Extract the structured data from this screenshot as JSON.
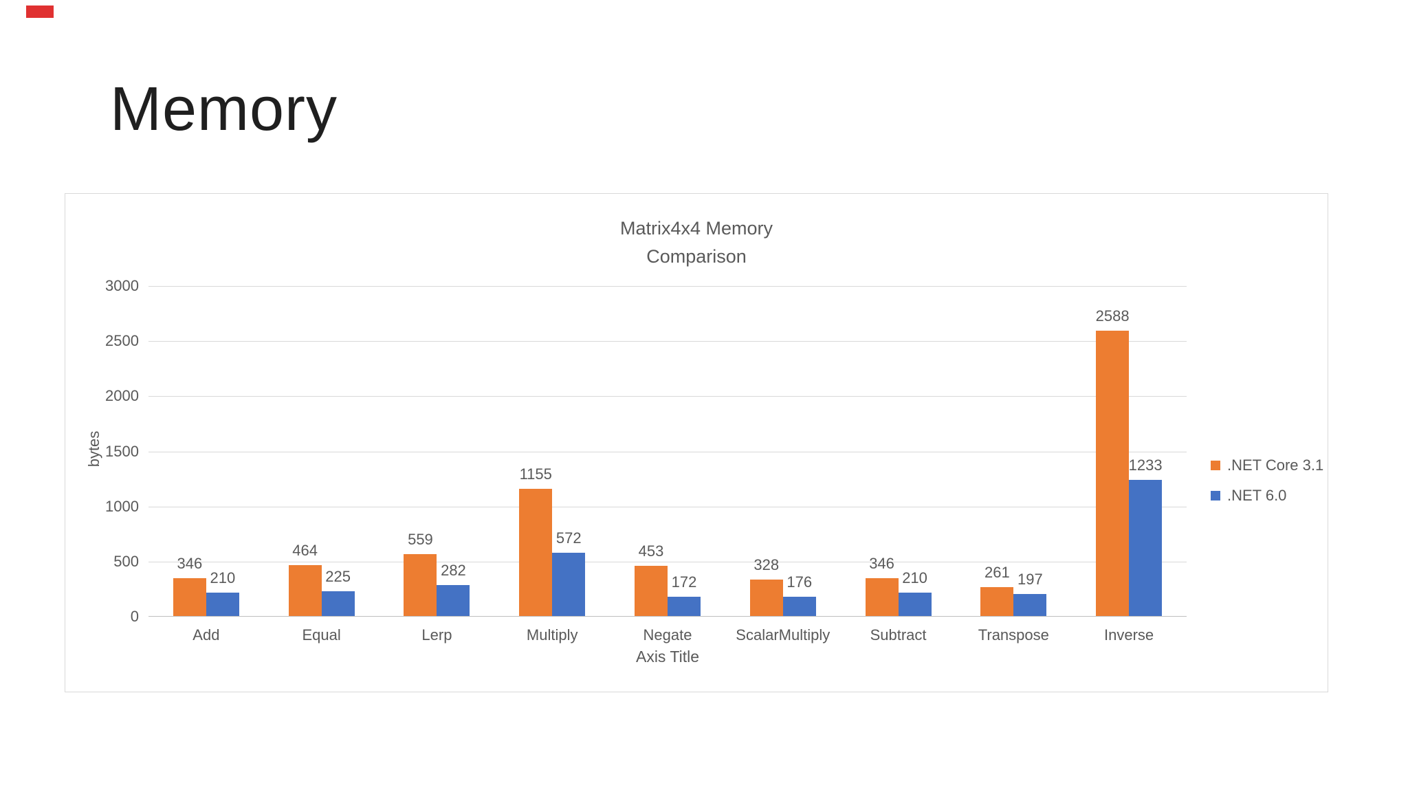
{
  "slide": {
    "title": "Memory"
  },
  "chart_data": {
    "type": "bar",
    "title_lines": [
      "Matrix4x4 Memory",
      "Comparison"
    ],
    "categories": [
      "Add",
      "Equal",
      "Lerp",
      "Multiply",
      "Negate",
      "ScalarMultiply",
      "Subtract",
      "Transpose",
      "Inverse"
    ],
    "series": [
      {
        "name": ".NET Core 3.1",
        "color": "#ED7D31",
        "values": [
          346,
          464,
          559,
          1155,
          453,
          328,
          346,
          261,
          2588
        ]
      },
      {
        "name": ".NET 6.0",
        "color": "#4472C4",
        "values": [
          210,
          225,
          282,
          572,
          172,
          176,
          210,
          197,
          1233
        ]
      }
    ],
    "xlabel": "Axis Title",
    "ylabel": "bytes",
    "ylim": [
      0,
      3000
    ],
    "yticks": [
      0,
      500,
      1000,
      1500,
      2000,
      2500,
      3000
    ],
    "grid": true,
    "legend_position": "right"
  }
}
